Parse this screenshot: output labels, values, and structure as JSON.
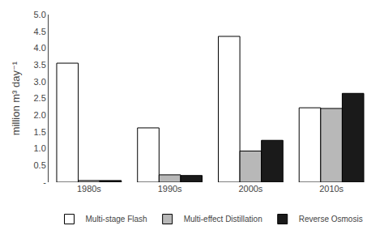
{
  "chart_data": {
    "type": "bar",
    "ylabel": "million m³ day⁻¹",
    "categories": [
      "1980s",
      "1990s",
      "2000s",
      "2010s"
    ],
    "series": [
      {
        "name": "Multi-stage Flash",
        "color": "#ffffff",
        "values": [
          3.55,
          1.62,
          4.35,
          2.22
        ]
      },
      {
        "name": "Multi-effect Distillation",
        "color": "#b8b8b8",
        "values": [
          0.05,
          0.22,
          0.93,
          2.2
        ]
      },
      {
        "name": "Reverse Osmosis",
        "color": "#1a1a1a",
        "values": [
          0.05,
          0.2,
          1.25,
          2.65
        ]
      }
    ],
    "ylim": [
      0,
      5.0
    ],
    "yticks": [
      {
        "value": 0,
        "label": "-"
      },
      0.5,
      {
        "value": 1,
        "label": "1.0"
      },
      1.5,
      {
        "value": 2,
        "label": "2.0"
      },
      2.5,
      {
        "value": 3,
        "label": "3.0"
      },
      3.5,
      {
        "value": 4,
        "label": "4.0"
      },
      4.5,
      {
        "value": 5,
        "label": "5.0"
      }
    ],
    "grid": false,
    "legend": "bottom"
  }
}
